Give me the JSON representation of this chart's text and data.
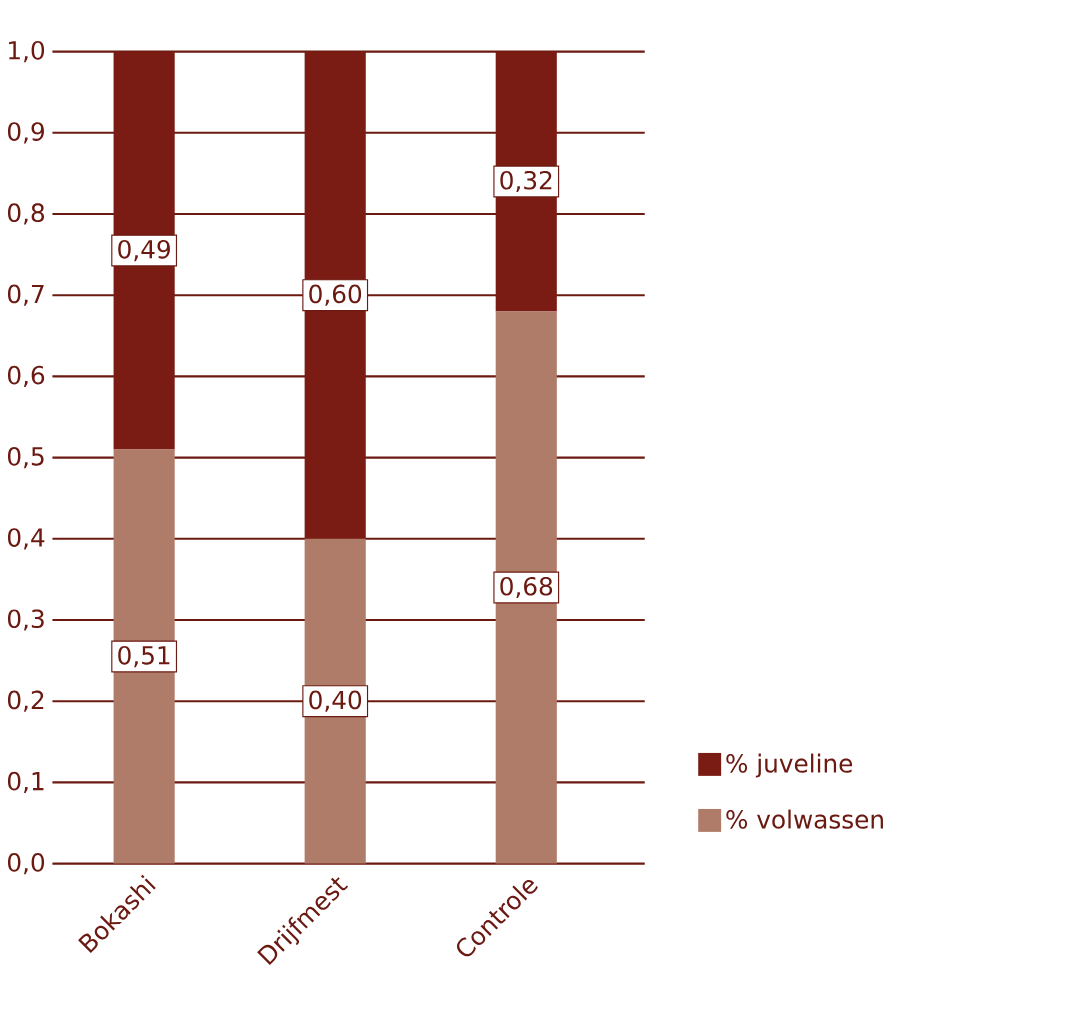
{
  "chart_data": {
    "type": "bar",
    "stacked": true,
    "categories": [
      "Bokashi",
      "Drijfmest",
      "Controle"
    ],
    "series": [
      {
        "name": "% volwassen",
        "color": "#b07c6a",
        "values": [
          0.51,
          0.4,
          0.68
        ],
        "value_labels": [
          "0,51",
          "0,40",
          "0,68"
        ]
      },
      {
        "name": "% juveline",
        "color": "#7a1c14",
        "values": [
          0.49,
          0.6,
          0.32
        ],
        "value_labels": [
          "0,49",
          "0,60",
          "0,32"
        ]
      }
    ],
    "ylim": [
      0,
      1
    ],
    "yticks": [
      {
        "value": 0,
        "label": "0,0"
      },
      {
        "value": 0.1,
        "label": "0,1"
      },
      {
        "value": 0.2,
        "label": "0,2"
      },
      {
        "value": 0.3,
        "label": "0,3"
      },
      {
        "value": 0.4,
        "label": "0,4"
      },
      {
        "value": 0.5,
        "label": "0,5"
      },
      {
        "value": 0.6,
        "label": "0,6"
      },
      {
        "value": 0.7,
        "label": "0,7"
      },
      {
        "value": 0.8,
        "label": "0,8"
      },
      {
        "value": 0.9,
        "label": "0,9"
      },
      {
        "value": 1,
        "label": "1,0"
      }
    ],
    "grid": "y",
    "legend": "right"
  }
}
